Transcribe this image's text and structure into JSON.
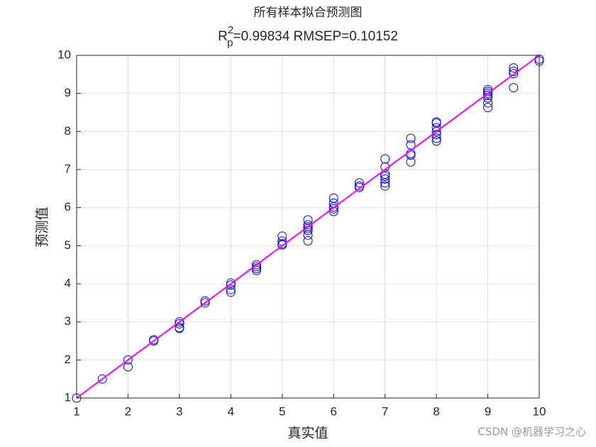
{
  "chart_data": {
    "type": "scatter",
    "title": "所有样本拟合预测图",
    "subtitle_parts": [
      "R",
      "2",
      "p",
      "=0.99834  RMSEP=0.10152"
    ],
    "x_label": "真实值",
    "y_label": "预测值",
    "annotation": "CSDN @机器学习之心",
    "xlim": [
      1,
      10
    ],
    "ylim": [
      1,
      10
    ],
    "xticks": [
      1,
      2,
      3,
      4,
      5,
      6,
      7,
      8,
      9,
      10
    ],
    "yticks": [
      1,
      2,
      3,
      4,
      5,
      6,
      7,
      8,
      9,
      10
    ],
    "grid": true,
    "series": [
      {
        "type": "scatter",
        "color": "#0000ff",
        "x": [
          1,
          1.5,
          2,
          2,
          2.5,
          2.5,
          3,
          3,
          3,
          3,
          3.5,
          3.5,
          4,
          4,
          4,
          4,
          4.5,
          4.5,
          4.5,
          4.5,
          5,
          5,
          5,
          5,
          5.5,
          5.5,
          5.5,
          5.5,
          5.5,
          5.5,
          5.5,
          6,
          6,
          6,
          6,
          6,
          6.5,
          6.5,
          6.5,
          7,
          7,
          7,
          7,
          7,
          7,
          7,
          7.5,
          7.5,
          7.5,
          7.5,
          7.5,
          8,
          8,
          8,
          8,
          8,
          8,
          8,
          9,
          9,
          9,
          9,
          9,
          9,
          9,
          9.5,
          9.5,
          9.5,
          9.5,
          10,
          10
        ],
        "values": [
          1.0,
          1.5,
          2.0,
          1.82,
          2.53,
          2.5,
          3.0,
          2.95,
          2.85,
          2.83,
          3.55,
          3.5,
          4.02,
          3.97,
          3.85,
          3.78,
          4.5,
          4.45,
          4.4,
          4.35,
          5.25,
          5.12,
          5.05,
          5.02,
          5.68,
          5.55,
          5.5,
          5.45,
          5.4,
          5.28,
          5.13,
          6.25,
          6.12,
          6.02,
          5.97,
          5.9,
          6.65,
          6.57,
          6.53,
          7.28,
          7.07,
          6.88,
          6.82,
          6.75,
          6.65,
          6.57,
          7.82,
          7.65,
          7.42,
          7.38,
          7.2,
          8.25,
          8.22,
          8.1,
          8.0,
          7.92,
          7.82,
          7.75,
          9.1,
          9.05,
          9.0,
          8.95,
          8.88,
          8.75,
          8.63,
          9.67,
          9.58,
          9.52,
          9.15,
          9.9,
          9.85
        ]
      },
      {
        "type": "line",
        "color": "#ff00ff",
        "x": [
          1,
          10
        ],
        "values": [
          1,
          10
        ]
      }
    ]
  }
}
